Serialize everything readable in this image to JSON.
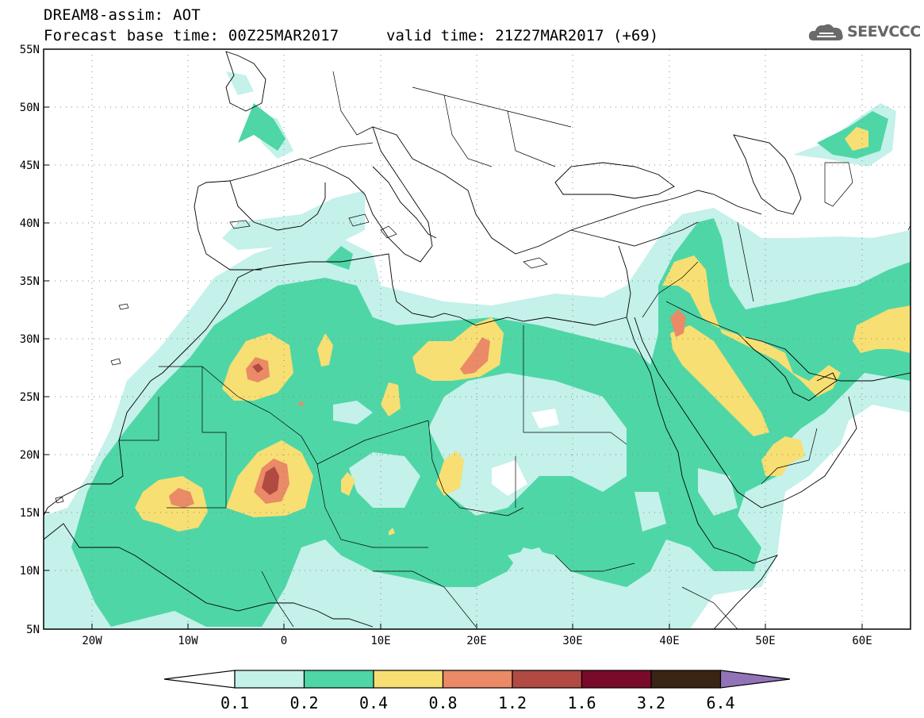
{
  "header": {
    "title_line1": "DREAM8-assim: AOT",
    "title_line2": "Forecast base time: 00Z25MAR2017",
    "valid_time": "valid time: 21Z27MAR2017 (+69)",
    "logo_text": "SEEVCCC",
    "logo_icon": "cloud-icon"
  },
  "map": {
    "lat_labels": [
      "55N",
      "50N",
      "45N",
      "40N",
      "35N",
      "30N",
      "25N",
      "20N",
      "15N",
      "10N",
      "5N"
    ],
    "lon_labels": [
      "20W",
      "10W",
      "0",
      "10E",
      "20E",
      "30E",
      "40E",
      "50E",
      "60E"
    ],
    "lat_range": [
      5,
      55
    ],
    "lon_range": [
      -25,
      65
    ]
  },
  "colorbar": {
    "labels": [
      "0.1",
      "0.2",
      "0.4",
      "0.8",
      "1.2",
      "1.6",
      "3.2",
      "6.4"
    ],
    "colors": [
      "#c4f1ea",
      "#4fd6a6",
      "#f7df73",
      "#ea8a66",
      "#b04a42",
      "#7a0a2a",
      "#3a2414",
      "#9373b8"
    ]
  }
}
